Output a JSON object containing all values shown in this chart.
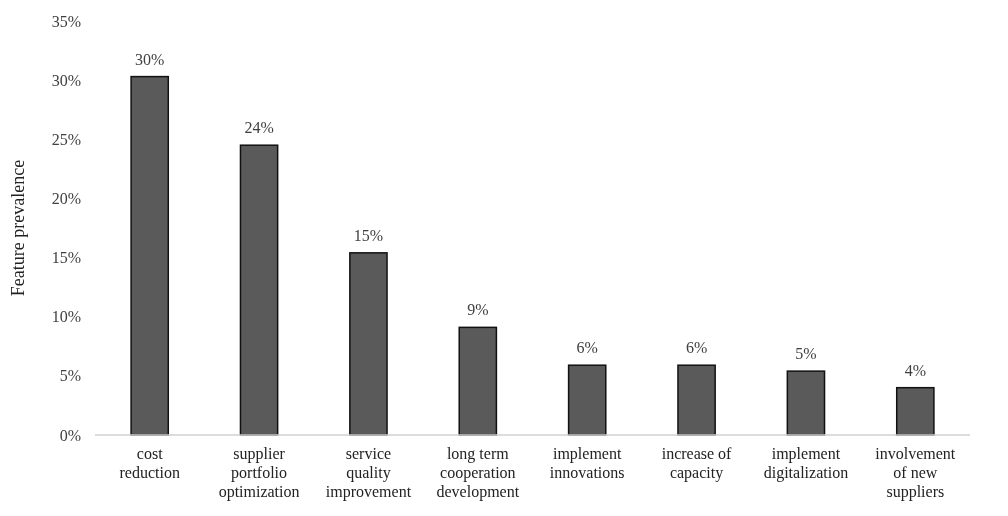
{
  "chart_data": {
    "type": "bar",
    "ylabel": "Feature prevalence",
    "categories": [
      "cost reduction",
      "supplier portfolio optimization",
      "service quality improvement",
      "long term cooperation development",
      "implement innovations",
      "increase of capacity",
      "implement digitalization",
      "involvement of new suppliers"
    ],
    "values": [
      30.3,
      24.5,
      15.4,
      9.1,
      5.9,
      5.9,
      5.4,
      4.0
    ],
    "value_labels": [
      "30%",
      "24%",
      "15%",
      "9%",
      "6%",
      "6%",
      "5%",
      "4%"
    ],
    "color": "#5a5a5a",
    "ylim": [
      0,
      35
    ],
    "yticks": [
      {
        "value": 0,
        "label": "0%"
      },
      {
        "value": 5,
        "label": "5%"
      },
      {
        "value": 10,
        "label": "10%"
      },
      {
        "value": 15,
        "label": "15%"
      },
      {
        "value": 20,
        "label": "20%"
      },
      {
        "value": 25,
        "label": "25%"
      },
      {
        "value": 30,
        "label": "30%"
      },
      {
        "value": 35,
        "label": "35%"
      }
    ],
    "grid": false
  }
}
